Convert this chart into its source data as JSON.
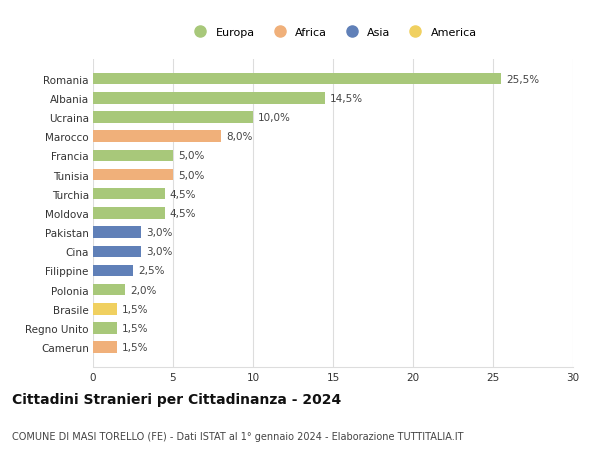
{
  "countries": [
    "Romania",
    "Albania",
    "Ucraina",
    "Marocco",
    "Francia",
    "Tunisia",
    "Turchia",
    "Moldova",
    "Pakistan",
    "Cina",
    "Filippine",
    "Polonia",
    "Brasile",
    "Regno Unito",
    "Camerun"
  ],
  "values": [
    25.5,
    14.5,
    10.0,
    8.0,
    5.0,
    5.0,
    4.5,
    4.5,
    3.0,
    3.0,
    2.5,
    2.0,
    1.5,
    1.5,
    1.5
  ],
  "labels": [
    "25,5%",
    "14,5%",
    "10,0%",
    "8,0%",
    "5,0%",
    "5,0%",
    "4,5%",
    "4,5%",
    "3,0%",
    "3,0%",
    "2,5%",
    "2,0%",
    "1,5%",
    "1,5%",
    "1,5%"
  ],
  "continents": [
    "Europa",
    "Europa",
    "Europa",
    "Africa",
    "Europa",
    "Africa",
    "Europa",
    "Europa",
    "Asia",
    "Asia",
    "Asia",
    "Europa",
    "America",
    "Europa",
    "Africa"
  ],
  "continent_colors": {
    "Europa": "#a8c87a",
    "Africa": "#f0b07a",
    "Asia": "#6080b8",
    "America": "#f0d060"
  },
  "legend_order": [
    "Europa",
    "Africa",
    "Asia",
    "America"
  ],
  "title": "Cittadini Stranieri per Cittadinanza - 2024",
  "subtitle": "COMUNE DI MASI TORELLO (FE) - Dati ISTAT al 1° gennaio 2024 - Elaborazione TUTTITALIA.IT",
  "xlim": [
    0,
    30
  ],
  "xticks": [
    0,
    5,
    10,
    15,
    20,
    25,
    30
  ],
  "bg_color": "#ffffff",
  "grid_color": "#dddddd",
  "bar_height": 0.6,
  "label_fontsize": 7.5,
  "tick_fontsize": 7.5,
  "title_fontsize": 10,
  "subtitle_fontsize": 7
}
